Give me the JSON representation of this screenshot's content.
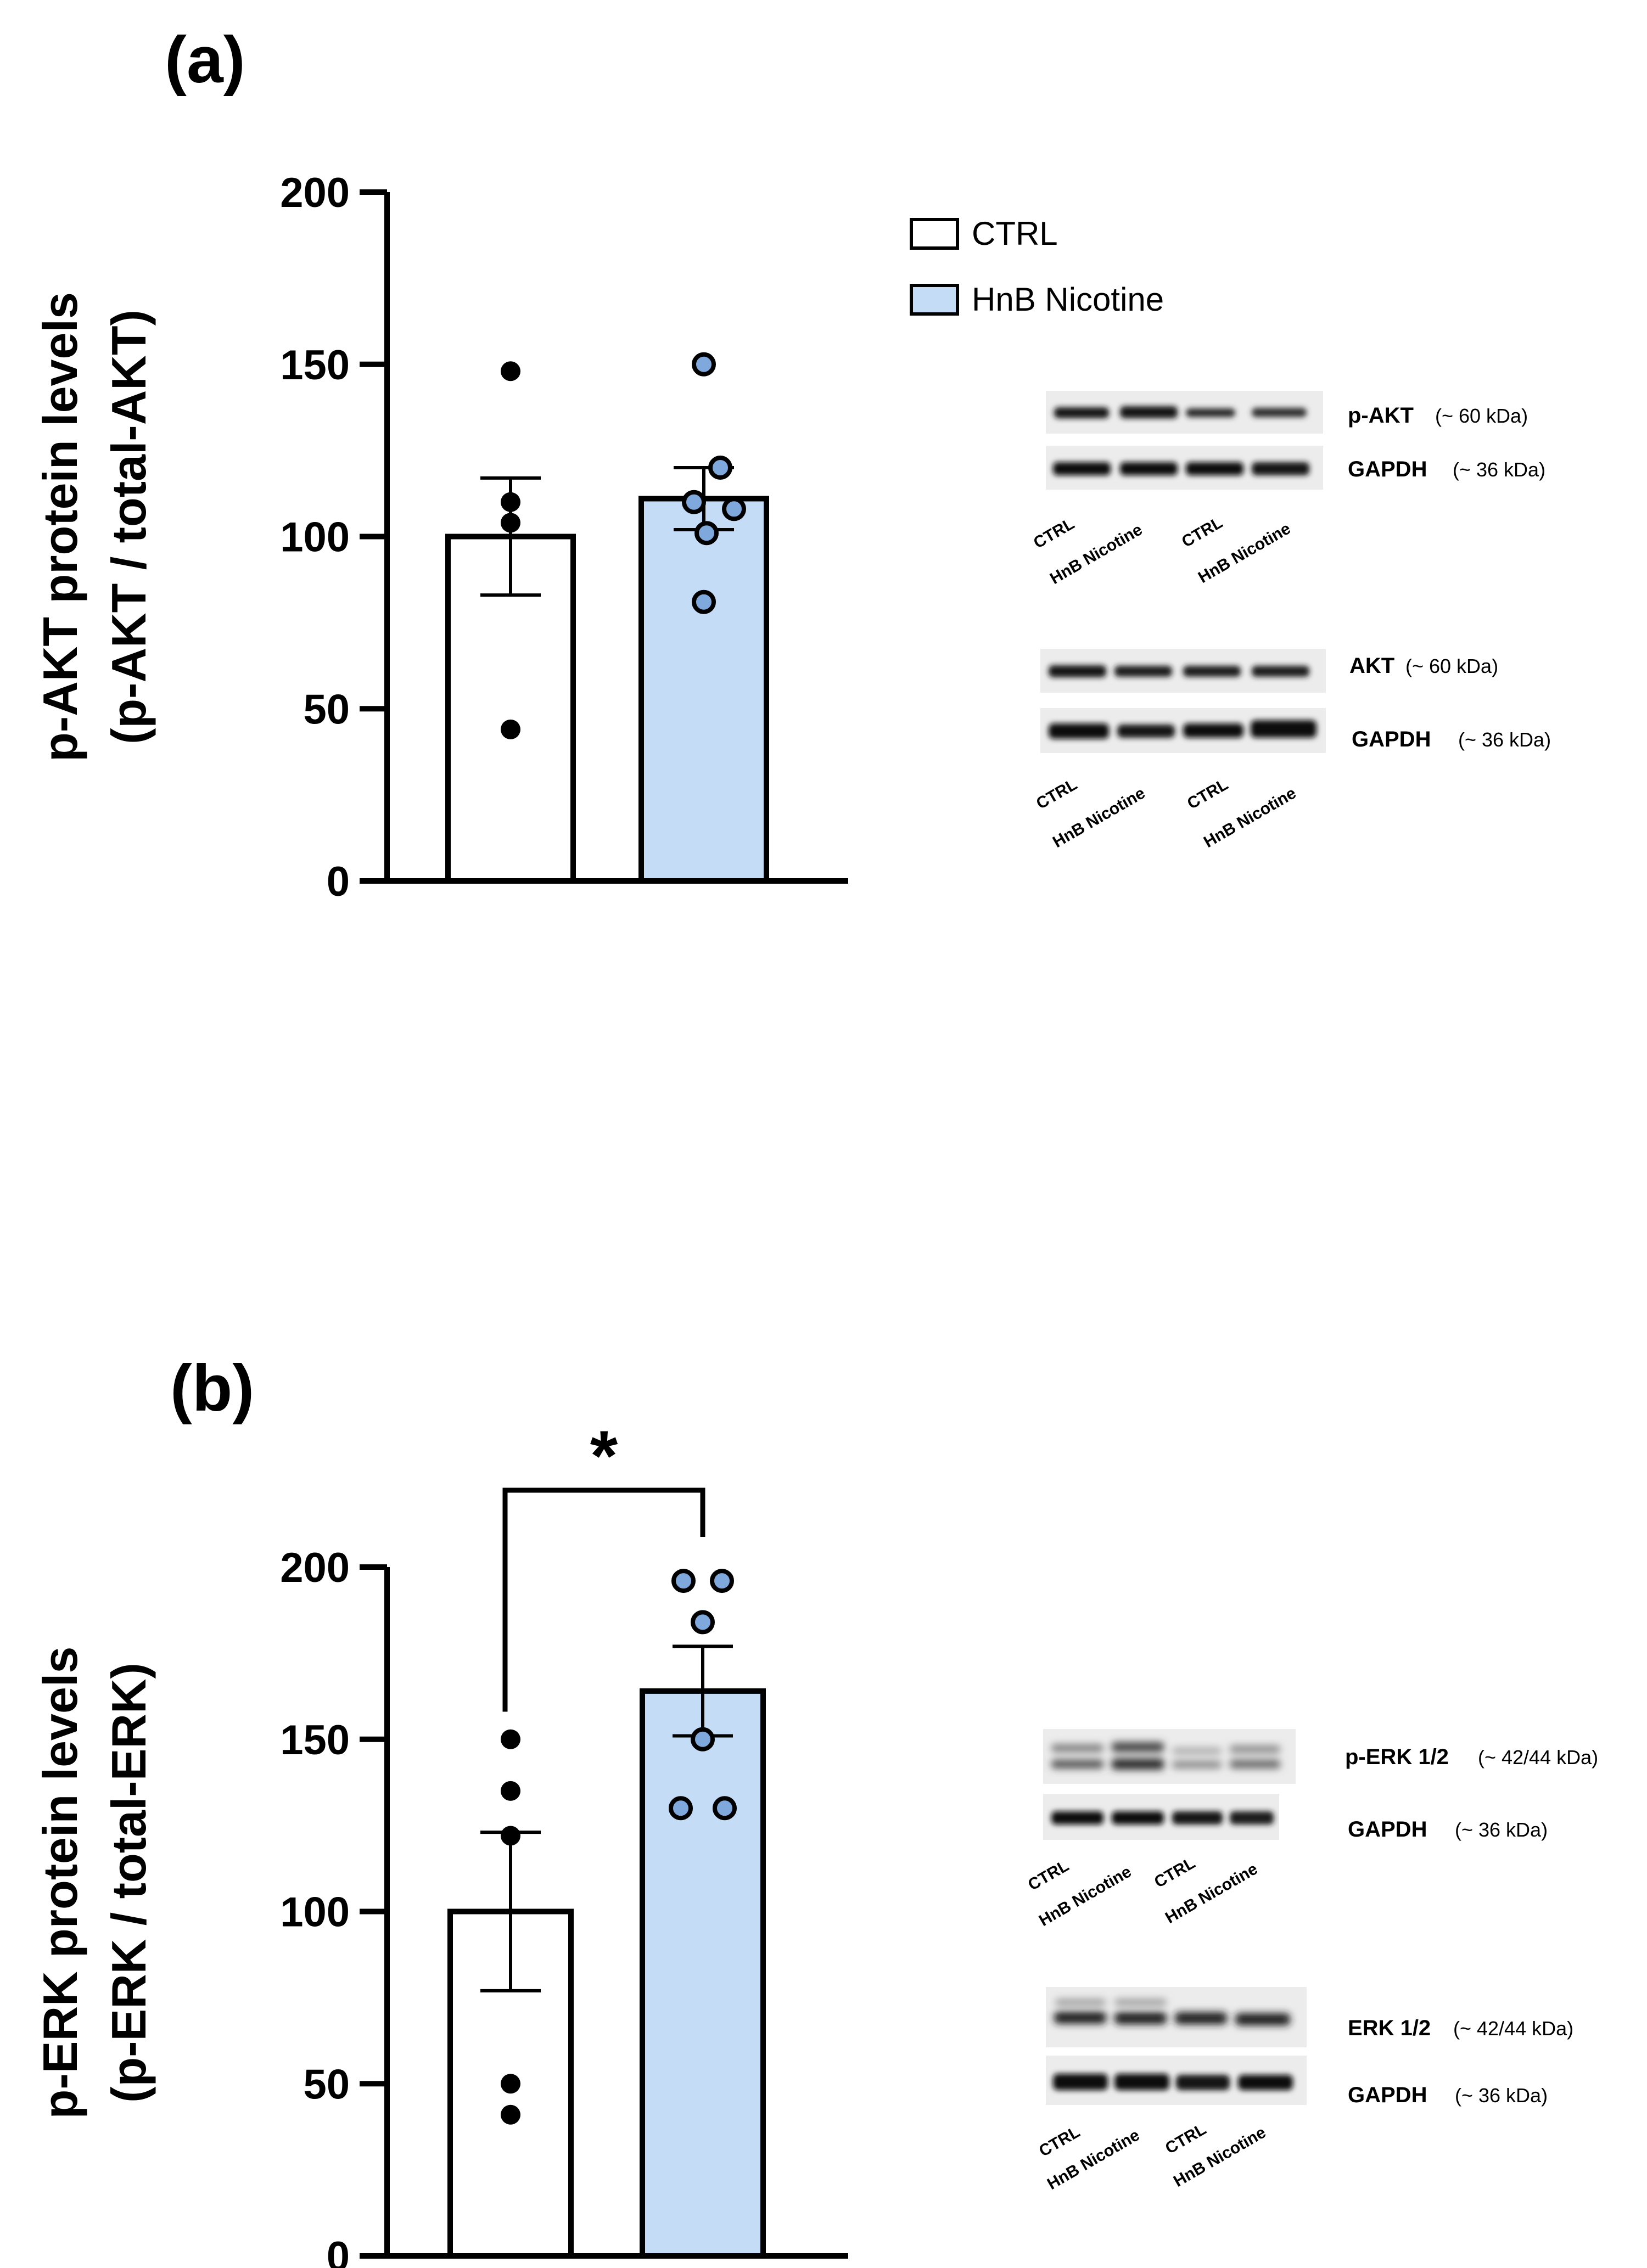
{
  "colors": {
    "ctrl_fill": "#ffffff",
    "hnb_fill": "#c5dcf7",
    "hnb_dot": "#7fa9dd",
    "axis": "#000000"
  },
  "chart_data": [
    {
      "type": "bar",
      "panel": "(a)",
      "ylabel_line1": "p-AKT protein levels",
      "ylabel_line2": "(p-AKT / total-AKT)",
      "ylim": [
        0,
        200
      ],
      "yticks": [
        0,
        50,
        100,
        150,
        200
      ],
      "categories": [
        "CTRL",
        "HnB Nicotine"
      ],
      "means": [
        100,
        111
      ],
      "sem": [
        17,
        9
      ],
      "points": [
        [
          148,
          110,
          104,
          44
        ],
        [
          150,
          120,
          110,
          108,
          101,
          81
        ]
      ],
      "significance": null
    },
    {
      "type": "bar",
      "panel": "(b)",
      "ylabel_line1": "p-ERK protein levels",
      "ylabel_line2": "(p-ERK / total-ERK)",
      "ylim": [
        0,
        200
      ],
      "yticks": [
        0,
        50,
        100,
        150,
        200
      ],
      "categories": [
        "CTRL",
        "HnB Nicotine"
      ],
      "means": [
        100,
        164
      ],
      "sem": [
        23,
        13
      ],
      "points": [
        [
          150,
          135,
          122,
          50,
          41
        ],
        [
          196,
          196,
          184,
          150,
          130,
          130
        ]
      ],
      "significance": "*"
    }
  ],
  "legend": [
    {
      "label": "CTRL"
    },
    {
      "label": "HnB Nicotine"
    }
  ],
  "blots": {
    "a": {
      "group1": [
        {
          "name": "p-AKT",
          "kda": "(~ 60 kDa)"
        },
        {
          "name": "GAPDH",
          "kda": "(~ 36 kDa)"
        }
      ],
      "group2": [
        {
          "name": "AKT",
          "kda": "(~ 60 kDa)"
        },
        {
          "name": "GAPDH",
          "kda": "(~ 36 kDa)"
        }
      ]
    },
    "b": {
      "group1": [
        {
          "name": "p-ERK 1/2",
          "kda": "(~ 42/44 kDa)"
        },
        {
          "name": "GAPDH",
          "kda": "(~ 36 kDa)"
        }
      ],
      "group2": [
        {
          "name": "ERK 1/2",
          "kda": "(~ 42/44 kDa)"
        },
        {
          "name": "GAPDH",
          "kda": "(~ 36 kDa)"
        }
      ]
    },
    "lanes": [
      "CTRL",
      "HnB Nicotine",
      "CTRL",
      "HnB Nicotine"
    ]
  }
}
